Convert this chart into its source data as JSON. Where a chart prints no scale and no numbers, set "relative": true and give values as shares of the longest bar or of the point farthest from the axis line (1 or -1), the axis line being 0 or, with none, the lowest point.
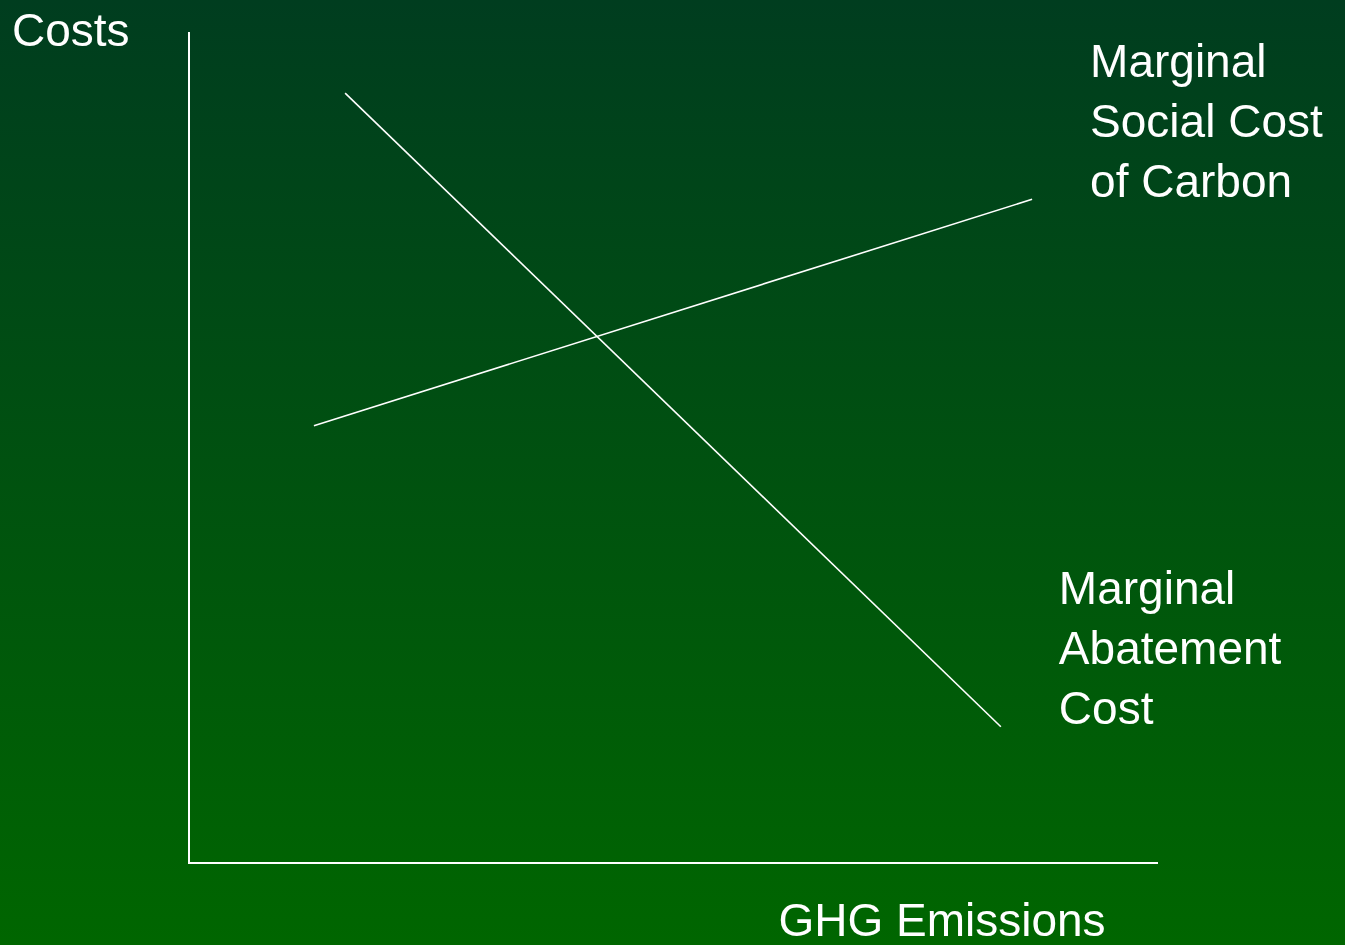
{
  "chart_data": {
    "type": "line",
    "relative": true,
    "xlabel": "GHG Emissions",
    "ylabel": "Costs",
    "categories": [
      null,
      null,
      null,
      null,
      null,
      null,
      null,
      null,
      null,
      null,
      null,
      null,
      null,
      null,
      null,
      null,
      null,
      null,
      null,
      null,
      null,
      null,
      null,
      null,
      null,
      null,
      null,
      null,
      null,
      null,
      null,
      null
    ],
    "series": [
      {
        "name": "Marginal Social Cost of Carbon",
        "color": "#ffffff",
        "values": [
          null,
          null,
          null,
          null,
          0.568,
          null,
          null,
          null,
          null,
          null,
          null,
          null,
          null,
          null,
          null,
          null,
          null,
          null,
          null,
          null,
          null,
          null,
          null,
          null,
          null,
          null,
          null,
          0.862,
          null,
          null,
          null,
          null
        ]
      },
      {
        "name": "Marginal Abatement Cost",
        "color": "#ffffff",
        "values": [
          null,
          null,
          null,
          null,
          null,
          1,
          null,
          null,
          null,
          null,
          null,
          null,
          null,
          null,
          null,
          null,
          null,
          null,
          null,
          null,
          null,
          null,
          null,
          null,
          null,
          null,
          0.177,
          null,
          null,
          null,
          null,
          null
        ]
      }
    ],
    "grid": false,
    "legend": false,
    "marker": "none",
    "line_style": "solid"
  }
}
